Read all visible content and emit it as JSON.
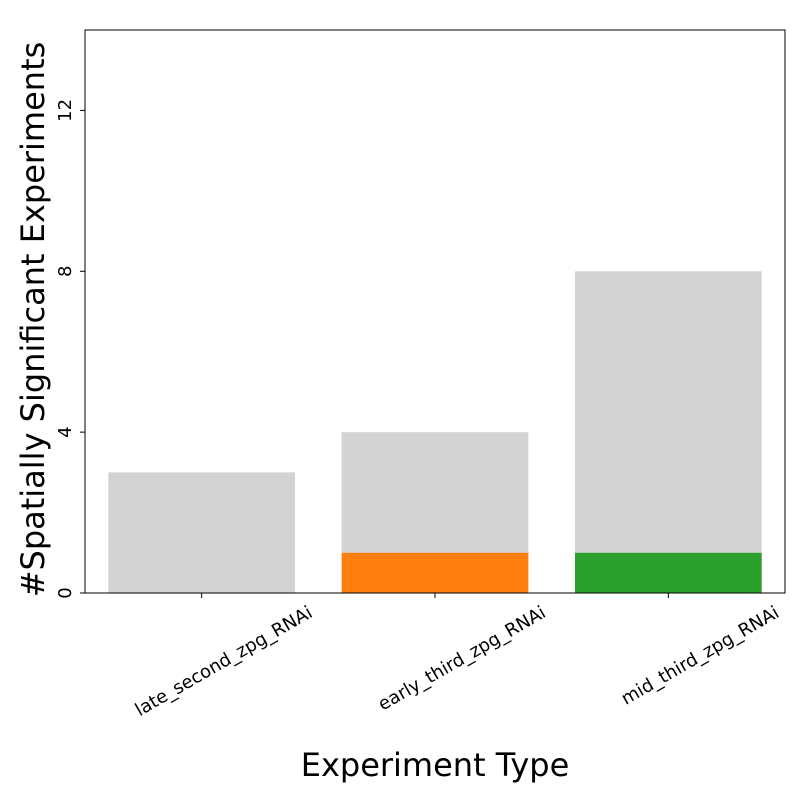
{
  "chart_data": {
    "type": "bar",
    "xlabel": "Experiment Type",
    "ylabel": "#Spatially Significant Experiments",
    "categories": [
      "late_second_zpg_RNAi",
      "early_third_zpg_RNAi",
      "mid_third_zpg_RNAi"
    ],
    "series": [
      {
        "values": [
          3,
          4,
          8
        ],
        "color": "#d3d3d3"
      },
      {
        "values": [
          0,
          1,
          1
        ],
        "colors": [
          "#ff7f0e",
          "#ff7f0e",
          "#2ca02c"
        ]
      }
    ],
    "ylim": [
      0,
      14
    ],
    "yticks": [
      0,
      4,
      8,
      12
    ],
    "grid": false,
    "legend": "none"
  }
}
